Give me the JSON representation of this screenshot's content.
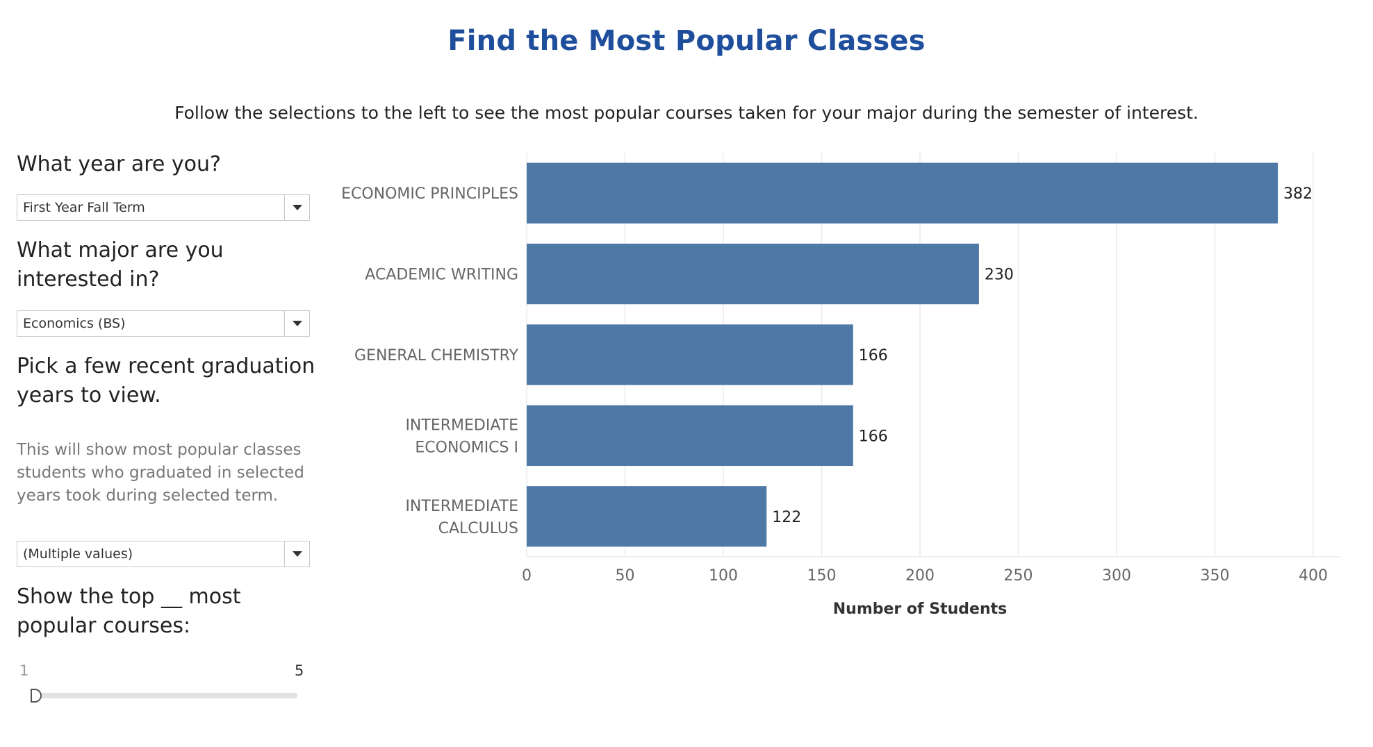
{
  "title": "Find the Most Popular Classes",
  "subtitle": "Follow the selections to the left to see the most popular courses taken for your major during the semester of interest.",
  "filters": {
    "year_question": "What year are you?",
    "year_value": "First Year Fall Term",
    "major_question": "What major are you interested in?",
    "major_value": "Economics (BS)",
    "grad_question": "Pick a few recent graduation years to view.",
    "grad_note": "This will show most popular classes students who graduated in selected years took during selected term.",
    "grad_value": "(Multiple values)",
    "top_question": "Show the top __ most popular courses:",
    "slider_min": "1",
    "slider_max": "5",
    "slider_value": 1,
    "dropdown_icon": "caret-down-icon"
  },
  "colors": {
    "title": "#1f4e9c",
    "bar": "#4e79a7",
    "grid": "#ebebeb"
  },
  "chart_data": {
    "type": "bar",
    "orientation": "horizontal",
    "categories": [
      [
        "ECONOMIC PRINCIPLES"
      ],
      [
        "ACADEMIC WRITING"
      ],
      [
        "GENERAL CHEMISTRY"
      ],
      [
        "INTERMEDIATE",
        "ECONOMICS I"
      ],
      [
        "INTERMEDIATE",
        "CALCULUS"
      ]
    ],
    "values": [
      382,
      230,
      166,
      166,
      122
    ],
    "xlabel": "Number of Students",
    "xlim": [
      0,
      400
    ],
    "xticks": [
      0,
      50,
      100,
      150,
      200,
      250,
      300,
      350,
      400
    ],
    "grid": true
  }
}
